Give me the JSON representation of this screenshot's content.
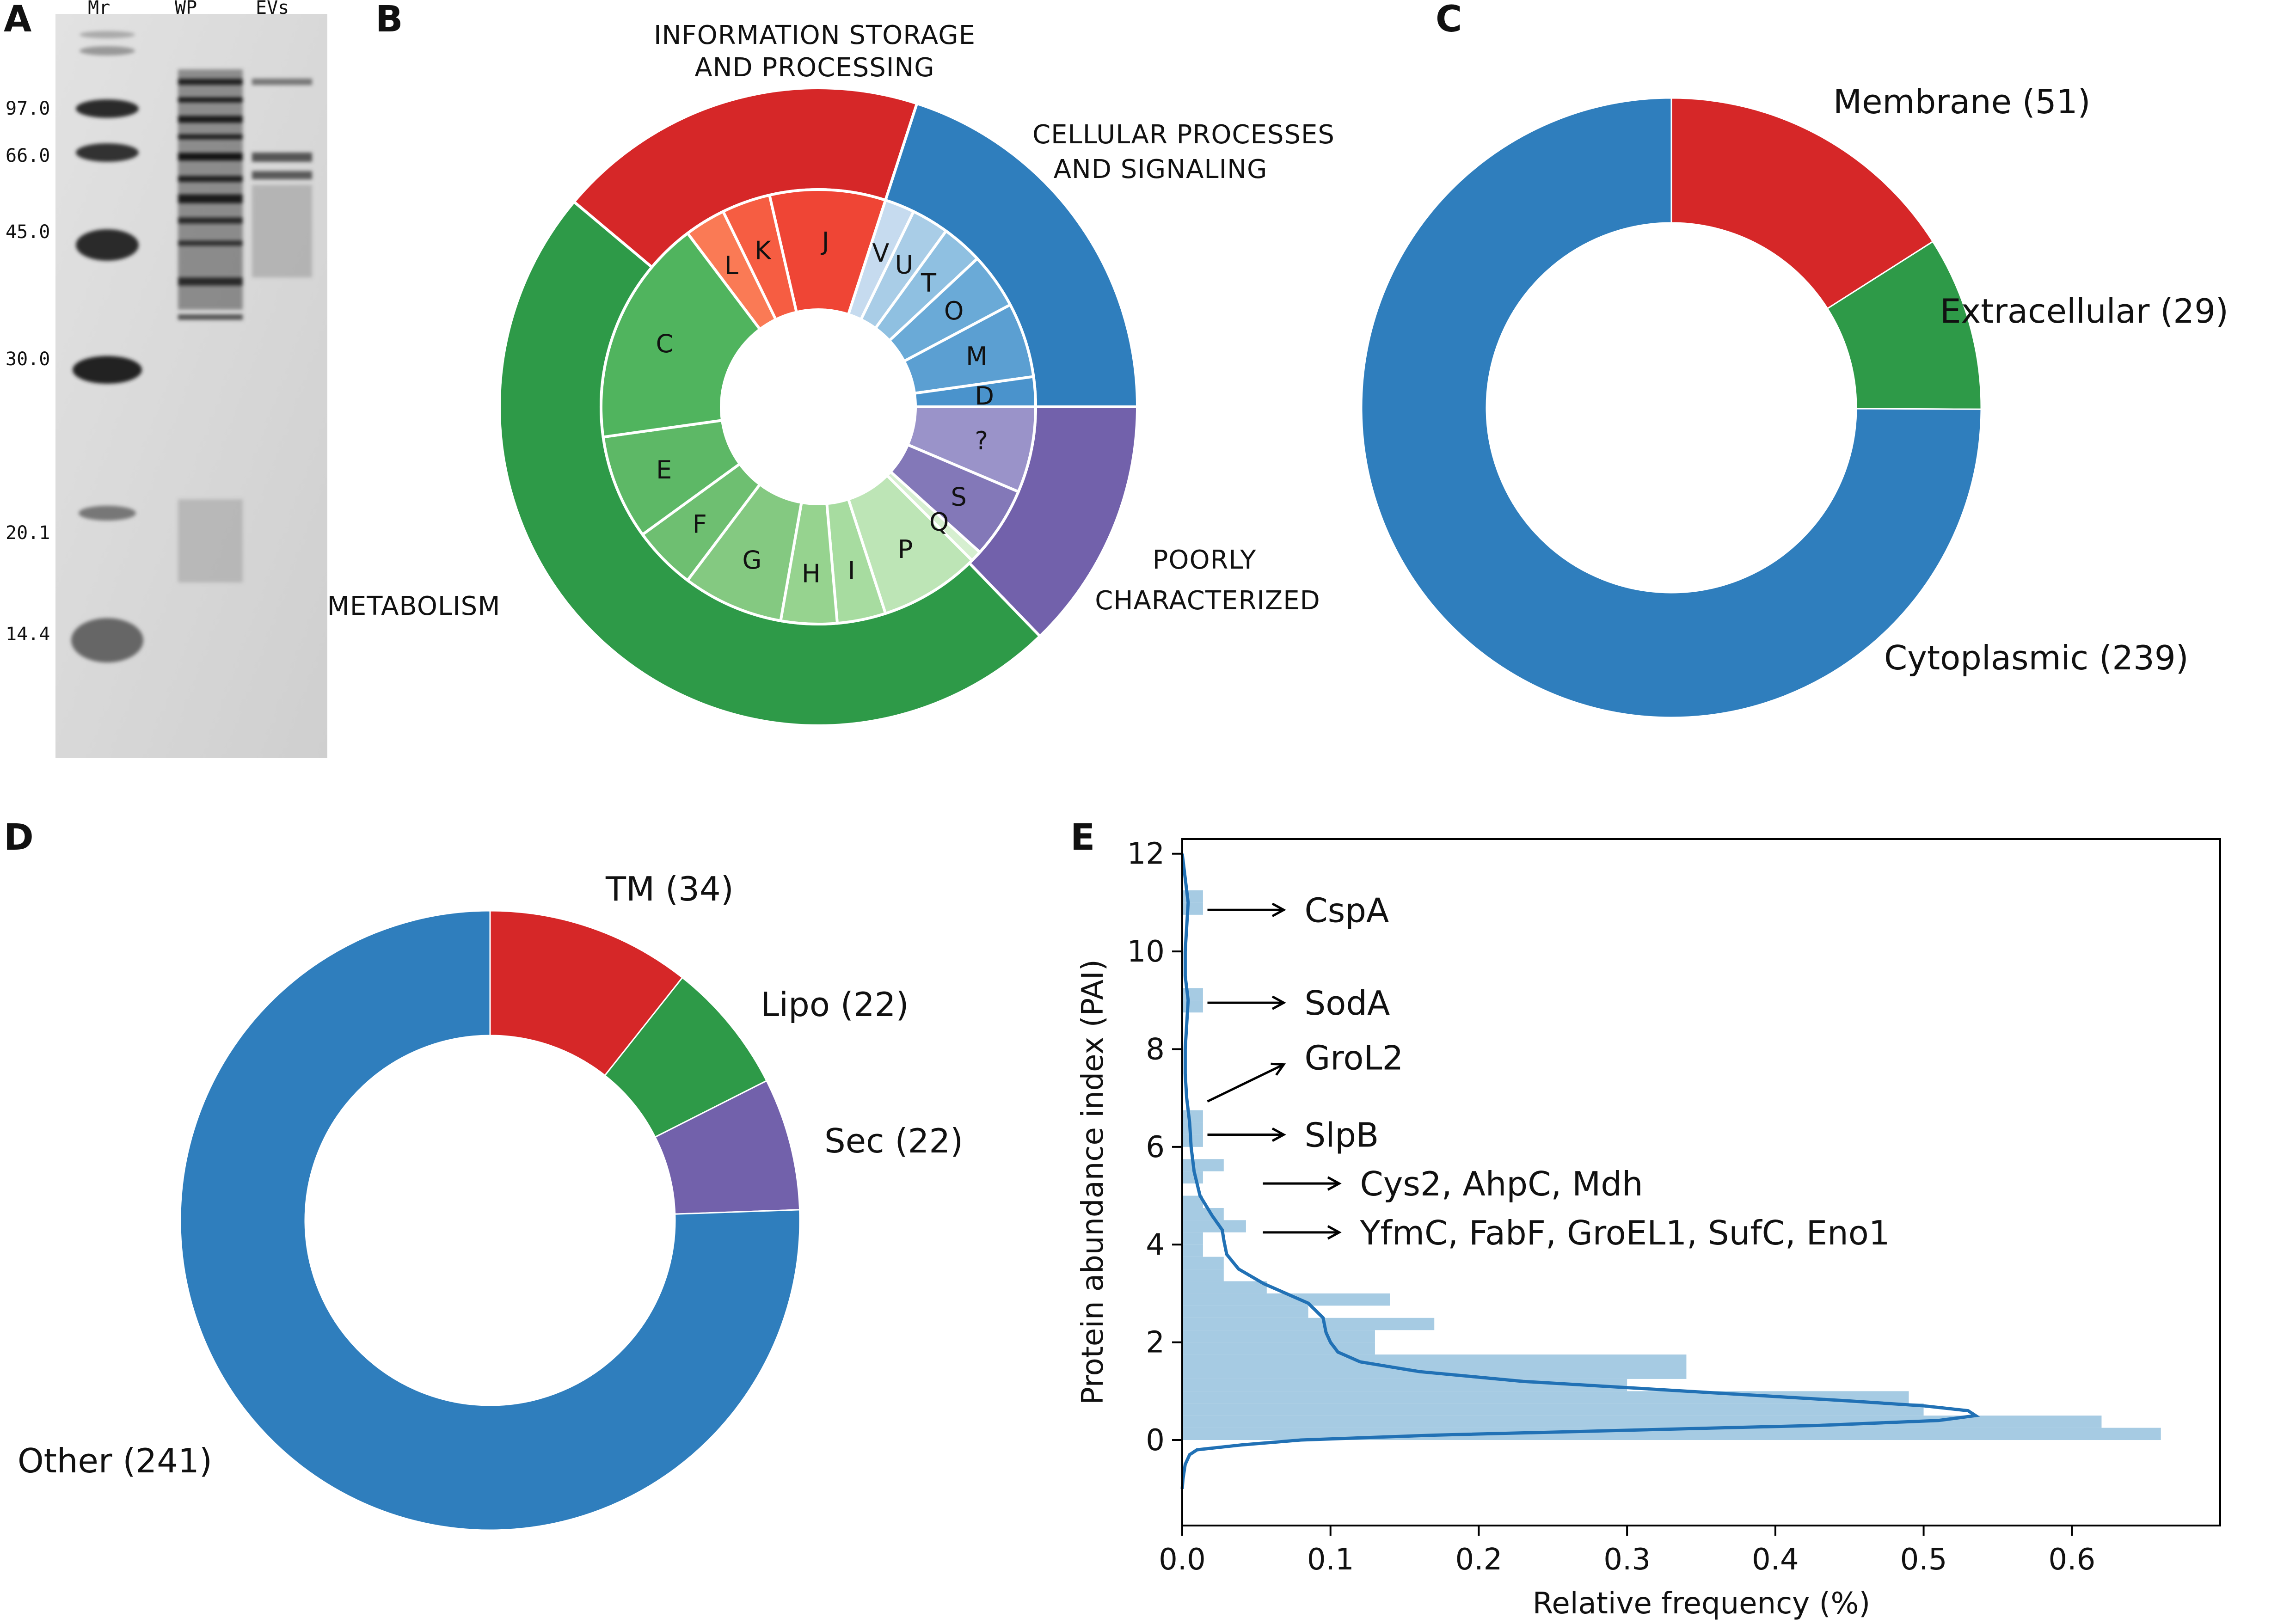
{
  "panels": {
    "a": "A",
    "b": "B",
    "c": "C",
    "d": "D",
    "e": "E"
  },
  "gel": {
    "lanes": [
      "Mr",
      "WP",
      "EVs"
    ],
    "markers": [
      "97.0",
      "66.0",
      "45.0",
      "30.0",
      "20.1",
      "14.4"
    ]
  },
  "chart_data": [
    {
      "type": "pie",
      "panel": "B",
      "style": "nested-donut",
      "categories": [
        {
          "name": "INFORMATION STORAGE AND PROCESSING",
          "line1": "INFORMATION STORAGE",
          "line2": "AND  PROCESSING",
          "color": "#d62728",
          "subcategories": [
            "J",
            "K",
            "L"
          ]
        },
        {
          "name": "CELLULAR PROCESSES AND SIGNALING",
          "line1": "CELLULAR PROCESSES",
          "line2": "AND  SIGNALING",
          "color": "#2f7ebd",
          "subcategories": [
            "V",
            "U",
            "T",
            "O",
            "M",
            "D"
          ]
        },
        {
          "name": "POORLY CHARACTERIZED",
          "line1": "POORLY",
          "line2": "CHARACTERIZED",
          "color": "#7261ab",
          "subcategories": [
            "?",
            "S"
          ]
        },
        {
          "name": "METABOLISM",
          "line1": "METABOLISM",
          "color": "#2e9a48",
          "subcategories": [
            "Q",
            "P",
            "I",
            "H",
            "G",
            "F",
            "E",
            "C"
          ]
        }
      ],
      "inner_labels": [
        "J",
        "K",
        "L",
        "V",
        "U",
        "T",
        "O",
        "M",
        "D",
        "?",
        "S",
        "Q",
        "P",
        "I",
        "H",
        "G",
        "F",
        "E",
        "C"
      ]
    },
    {
      "type": "pie",
      "panel": "C",
      "style": "donut",
      "slices": [
        {
          "label": "Membrane (51)",
          "value": 51,
          "color": "#d62728"
        },
        {
          "label": "Extracellular (29)",
          "value": 29,
          "color": "#2e9a48"
        },
        {
          "label": "Cytoplasmic (239)",
          "value": 239,
          "color": "#2f7ebd"
        }
      ]
    },
    {
      "type": "pie",
      "panel": "D",
      "style": "donut",
      "slices": [
        {
          "label": "TM (34)",
          "value": 34,
          "color": "#d62728"
        },
        {
          "label": "Lipo (22)",
          "value": 22,
          "color": "#2e9a48"
        },
        {
          "label": "Sec (22)",
          "value": 22,
          "color": "#7261ab"
        },
        {
          "label": "Other (241)",
          "value": 241,
          "color": "#2f7ebd"
        }
      ]
    },
    {
      "type": "bar",
      "panel": "E",
      "orientation": "horizontal-histogram-with-density",
      "xlabel": "Relative frequency (%)",
      "ylabel": "Protein abundance index (PAI)",
      "xlim": [
        0,
        0.7
      ],
      "ylim": [
        -1.75,
        12.3
      ],
      "xticks": [
        "0.0",
        "0.1",
        "0.2",
        "0.3",
        "0.4",
        "0.5",
        "0.6"
      ],
      "yticks": [
        "0",
        "2",
        "4",
        "6",
        "8",
        "10",
        "12"
      ],
      "bar_color": "#a6cbe3",
      "line_color": "#2171b5",
      "bars": [
        {
          "y0": 0.0,
          "y1": 0.25,
          "value": 0.66
        },
        {
          "y0": 0.25,
          "y1": 0.5,
          "value": 0.62
        },
        {
          "y0": 0.5,
          "y1": 0.75,
          "value": 0.5
        },
        {
          "y0": 0.75,
          "y1": 1.0,
          "value": 0.49
        },
        {
          "y0": 1.0,
          "y1": 1.25,
          "value": 0.3
        },
        {
          "y0": 1.25,
          "y1": 1.5,
          "value": 0.34
        },
        {
          "y0": 1.5,
          "y1": 1.75,
          "value": 0.34
        },
        {
          "y0": 1.75,
          "y1": 2.0,
          "value": 0.13
        },
        {
          "y0": 2.0,
          "y1": 2.25,
          "value": 0.13
        },
        {
          "y0": 2.25,
          "y1": 2.5,
          "value": 0.17
        },
        {
          "y0": 2.5,
          "y1": 2.75,
          "value": 0.085
        },
        {
          "y0": 2.75,
          "y1": 3.0,
          "value": 0.14
        },
        {
          "y0": 3.0,
          "y1": 3.25,
          "value": 0.057
        },
        {
          "y0": 3.25,
          "y1": 3.5,
          "value": 0.028
        },
        {
          "y0": 3.5,
          "y1": 3.75,
          "value": 0.028
        },
        {
          "y0": 3.75,
          "y1": 4.0,
          "value": 0.014
        },
        {
          "y0": 4.0,
          "y1": 4.25,
          "value": 0.014
        },
        {
          "y0": 4.25,
          "y1": 4.5,
          "value": 0.043
        },
        {
          "y0": 4.5,
          "y1": 4.75,
          "value": 0.028
        },
        {
          "y0": 4.75,
          "y1": 5.0,
          "value": 0.014
        },
        {
          "y0": 5.25,
          "y1": 5.5,
          "value": 0.014
        },
        {
          "y0": 5.5,
          "y1": 5.75,
          "value": 0.028
        },
        {
          "y0": 6.0,
          "y1": 6.25,
          "value": 0.014
        },
        {
          "y0": 6.25,
          "y1": 6.5,
          "value": 0.014
        },
        {
          "y0": 6.5,
          "y1": 6.75,
          "value": 0.014
        },
        {
          "y0": 8.75,
          "y1": 9.0,
          "value": 0.014
        },
        {
          "y0": 9.0,
          "y1": 9.25,
          "value": 0.014
        },
        {
          "y0": 10.75,
          "y1": 11.0,
          "value": 0.014
        },
        {
          "y0": 11.0,
          "y1": 11.25,
          "value": 0.014
        }
      ],
      "density": [
        [
          -1.0,
          0.0
        ],
        [
          -0.8,
          0.0005
        ],
        [
          -0.5,
          0.002
        ],
        [
          -0.3,
          0.005
        ],
        [
          -0.2,
          0.01
        ],
        [
          -0.1,
          0.04
        ],
        [
          0.0,
          0.08
        ],
        [
          0.1,
          0.17
        ],
        [
          0.2,
          0.3
        ],
        [
          0.3,
          0.43
        ],
        [
          0.4,
          0.51
        ],
        [
          0.5,
          0.535
        ],
        [
          0.6,
          0.53
        ],
        [
          0.7,
          0.5
        ],
        [
          0.8,
          0.45
        ],
        [
          1.0,
          0.34
        ],
        [
          1.2,
          0.23
        ],
        [
          1.4,
          0.16
        ],
        [
          1.6,
          0.12
        ],
        [
          1.8,
          0.105
        ],
        [
          2.0,
          0.1
        ],
        [
          2.2,
          0.097
        ],
        [
          2.5,
          0.095
        ],
        [
          2.8,
          0.085
        ],
        [
          3.0,
          0.07
        ],
        [
          3.2,
          0.055
        ],
        [
          3.5,
          0.038
        ],
        [
          3.8,
          0.03
        ],
        [
          4.1,
          0.028
        ],
        [
          4.3,
          0.027
        ],
        [
          4.6,
          0.02
        ],
        [
          5.0,
          0.012
        ],
        [
          5.5,
          0.008
        ],
        [
          6.0,
          0.006
        ],
        [
          6.5,
          0.005
        ],
        [
          7.0,
          0.003
        ],
        [
          7.5,
          0.002
        ],
        [
          8.0,
          0.002
        ],
        [
          8.5,
          0.003
        ],
        [
          9.0,
          0.004
        ],
        [
          9.5,
          0.002
        ],
        [
          10.0,
          0.002
        ],
        [
          10.5,
          0.003
        ],
        [
          11.0,
          0.004
        ],
        [
          11.5,
          0.002
        ],
        [
          12.0,
          0.0
        ]
      ],
      "annotations": [
        {
          "label": "CspA",
          "x": 0.08,
          "y": 10.85
        },
        {
          "label": "SodA",
          "x": 0.08,
          "y": 8.95
        },
        {
          "label": "GroL2",
          "x": 0.08,
          "y": 7.45
        },
        {
          "label": "SlpB",
          "x": 0.08,
          "y": 6.25
        },
        {
          "label": "Cys2, AhpC, Mdh",
          "x": 0.08,
          "y": 5.25
        },
        {
          "label": "YfmC, FabF, GroEL1, SufC, Eno1",
          "x": 0.1,
          "y": 4.25
        }
      ]
    }
  ]
}
